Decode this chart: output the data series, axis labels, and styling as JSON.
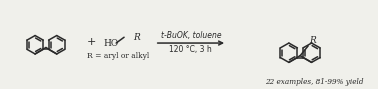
{
  "bg_color": "#f0f0eb",
  "line_color": "#2a2a2a",
  "text_color": "#2a2a2a",
  "reaction_arrow_text_top": "t-BuOK, toluene",
  "reaction_arrow_text_bottom": "120 °C, 3 h",
  "plus_sign": "+",
  "alcohol_label": "R = aryl or alkyl",
  "product_label": "22 examples, 81-99% yield",
  "R_label": "R",
  "HO_label": "HO",
  "lw": 1.1,
  "figsize": [
    3.78,
    0.89
  ],
  "dpi": 100
}
